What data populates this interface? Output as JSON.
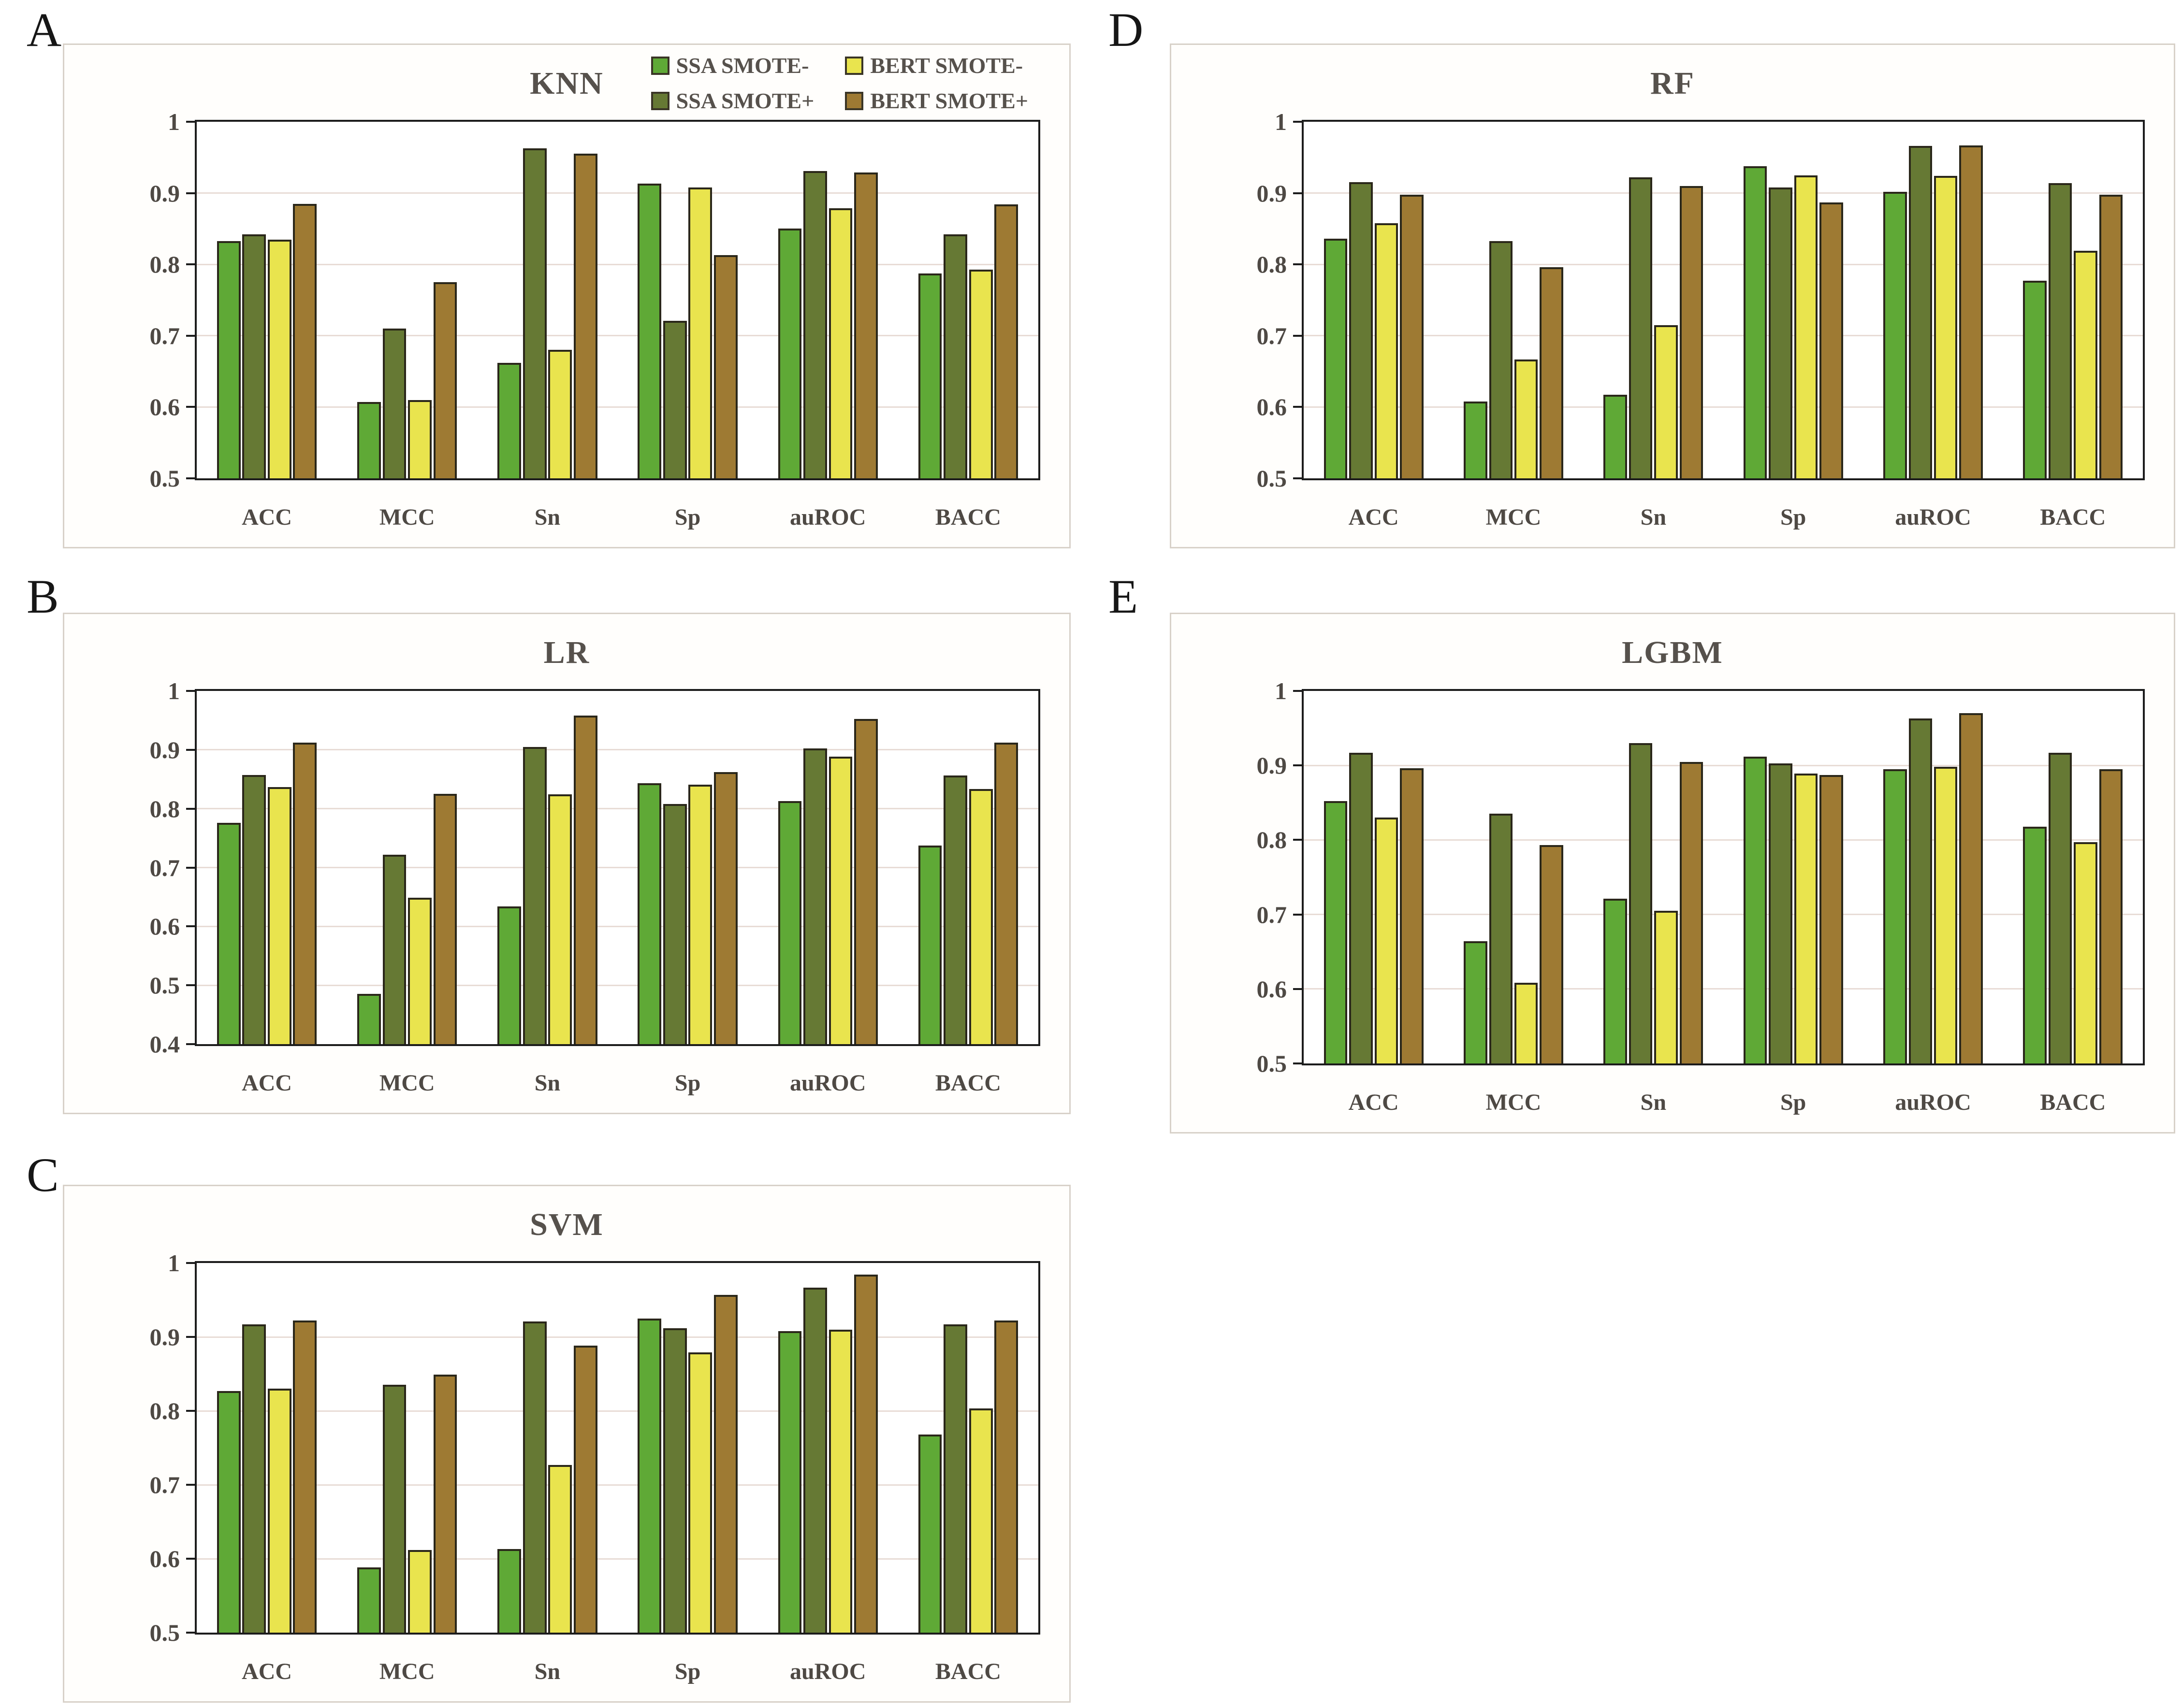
{
  "figure": {
    "legend": {
      "items": [
        {
          "label": "SSA SMOTE-",
          "color": "#5fa936"
        },
        {
          "label": "SSA SMOTE+",
          "color": "#667934"
        },
        {
          "label": "BERT SMOTE-",
          "color": "#e9e44e"
        },
        {
          "label": "BERT SMOTE+",
          "color": "#9e7a33"
        }
      ],
      "position": "top-right-of-panel-A"
    },
    "colors": {
      "bar_border": "#2a271a",
      "axis": "#1c1c1c",
      "gridline": "#e8dcd6",
      "text": "#56514c",
      "panel_border": "#d8d1c9"
    }
  },
  "chart_data": [
    {
      "panel_letter": "A",
      "title": "KNN",
      "type": "bar",
      "categories": [
        "ACC",
        "MCC",
        "Sn",
        "Sp",
        "auROC",
        "BACC"
      ],
      "series": [
        {
          "name": "SSA SMOTE-",
          "color": "#5fa936",
          "values": [
            0.833,
            0.607,
            0.662,
            0.913,
            0.85,
            0.787
          ]
        },
        {
          "name": "SSA SMOTE+",
          "color": "#667934",
          "values": [
            0.842,
            0.71,
            0.963,
            0.721,
            0.931,
            0.842
          ]
        },
        {
          "name": "BERT SMOTE-",
          "color": "#e9e44e",
          "values": [
            0.835,
            0.61,
            0.68,
            0.908,
            0.879,
            0.793
          ]
        },
        {
          "name": "BERT SMOTE+",
          "color": "#9e7a33",
          "values": [
            0.885,
            0.775,
            0.955,
            0.813,
            0.929,
            0.884
          ]
        }
      ],
      "ylim": [
        0.5,
        1.0
      ],
      "yticks": [
        0.5,
        0.6,
        0.7,
        0.8,
        0.9,
        1
      ],
      "grid": true,
      "legend_shown": true
    },
    {
      "panel_letter": "B",
      "title": "LR",
      "type": "bar",
      "categories": [
        "ACC",
        "MCC",
        "Sn",
        "Sp",
        "auROC",
        "BACC"
      ],
      "series": [
        {
          "name": "SSA SMOTE-",
          "color": "#5fa936",
          "values": [
            0.776,
            0.485,
            0.634,
            0.843,
            0.813,
            0.737
          ]
        },
        {
          "name": "SSA SMOTE+",
          "color": "#667934",
          "values": [
            0.857,
            0.722,
            0.905,
            0.808,
            0.902,
            0.856
          ]
        },
        {
          "name": "BERT SMOTE-",
          "color": "#e9e44e",
          "values": [
            0.837,
            0.649,
            0.824,
            0.841,
            0.888,
            0.833
          ]
        },
        {
          "name": "BERT SMOTE+",
          "color": "#9e7a33",
          "values": [
            0.912,
            0.825,
            0.958,
            0.862,
            0.952,
            0.912
          ]
        }
      ],
      "ylim": [
        0.4,
        1.0
      ],
      "yticks": [
        0.4,
        0.5,
        0.6,
        0.7,
        0.8,
        0.9,
        1
      ],
      "grid": true,
      "legend_shown": false
    },
    {
      "panel_letter": "C",
      "title": "SVM",
      "type": "bar",
      "categories": [
        "ACC",
        "MCC",
        "Sn",
        "Sp",
        "auROC",
        "BACC"
      ],
      "series": [
        {
          "name": "SSA SMOTE-",
          "color": "#5fa936",
          "values": [
            0.827,
            0.588,
            0.613,
            0.925,
            0.908,
            0.768
          ]
        },
        {
          "name": "SSA SMOTE+",
          "color": "#667934",
          "values": [
            0.917,
            0.835,
            0.921,
            0.912,
            0.967,
            0.917
          ]
        },
        {
          "name": "BERT SMOTE-",
          "color": "#e9e44e",
          "values": [
            0.83,
            0.612,
            0.727,
            0.879,
            0.91,
            0.803
          ]
        },
        {
          "name": "BERT SMOTE+",
          "color": "#9e7a33",
          "values": [
            0.922,
            0.849,
            0.888,
            0.957,
            0.984,
            0.922
          ]
        }
      ],
      "ylim": [
        0.5,
        1.0
      ],
      "yticks": [
        0.5,
        0.6,
        0.7,
        0.8,
        0.9,
        1
      ],
      "grid": true,
      "legend_shown": false
    },
    {
      "panel_letter": "D",
      "title": "RF",
      "type": "bar",
      "categories": [
        "ACC",
        "MCC",
        "Sn",
        "Sp",
        "auROC",
        "BACC"
      ],
      "series": [
        {
          "name": "SSA SMOTE-",
          "color": "#5fa936",
          "values": [
            0.836,
            0.608,
            0.617,
            0.938,
            0.902,
            0.777
          ]
        },
        {
          "name": "SSA SMOTE+",
          "color": "#667934",
          "values": [
            0.915,
            0.833,
            0.922,
            0.908,
            0.966,
            0.914
          ]
        },
        {
          "name": "BERT SMOTE-",
          "color": "#e9e44e",
          "values": [
            0.858,
            0.667,
            0.715,
            0.925,
            0.924,
            0.819
          ]
        },
        {
          "name": "BERT SMOTE+",
          "color": "#9e7a33",
          "values": [
            0.898,
            0.796,
            0.91,
            0.887,
            0.967,
            0.898
          ]
        }
      ],
      "ylim": [
        0.5,
        1.0
      ],
      "yticks": [
        0.5,
        0.6,
        0.7,
        0.8,
        0.9,
        1
      ],
      "grid": true,
      "legend_shown": false
    },
    {
      "panel_letter": "E",
      "title": "LGBM",
      "type": "bar",
      "categories": [
        "ACC",
        "MCC",
        "Sn",
        "Sp",
        "auROC",
        "BACC"
      ],
      "series": [
        {
          "name": "SSA SMOTE-",
          "color": "#5fa936",
          "values": [
            0.852,
            0.664,
            0.721,
            0.912,
            0.895,
            0.818
          ]
        },
        {
          "name": "SSA SMOTE+",
          "color": "#667934",
          "values": [
            0.917,
            0.835,
            0.93,
            0.903,
            0.963,
            0.917
          ]
        },
        {
          "name": "BERT SMOTE-",
          "color": "#e9e44e",
          "values": [
            0.83,
            0.608,
            0.705,
            0.889,
            0.898,
            0.797
          ]
        },
        {
          "name": "BERT SMOTE+",
          "color": "#9e7a33",
          "values": [
            0.896,
            0.793,
            0.905,
            0.887,
            0.97,
            0.895
          ]
        }
      ],
      "ylim": [
        0.5,
        1.0
      ],
      "yticks": [
        0.5,
        0.6,
        0.7,
        0.8,
        0.9,
        1
      ],
      "grid": true,
      "legend_shown": false
    }
  ]
}
